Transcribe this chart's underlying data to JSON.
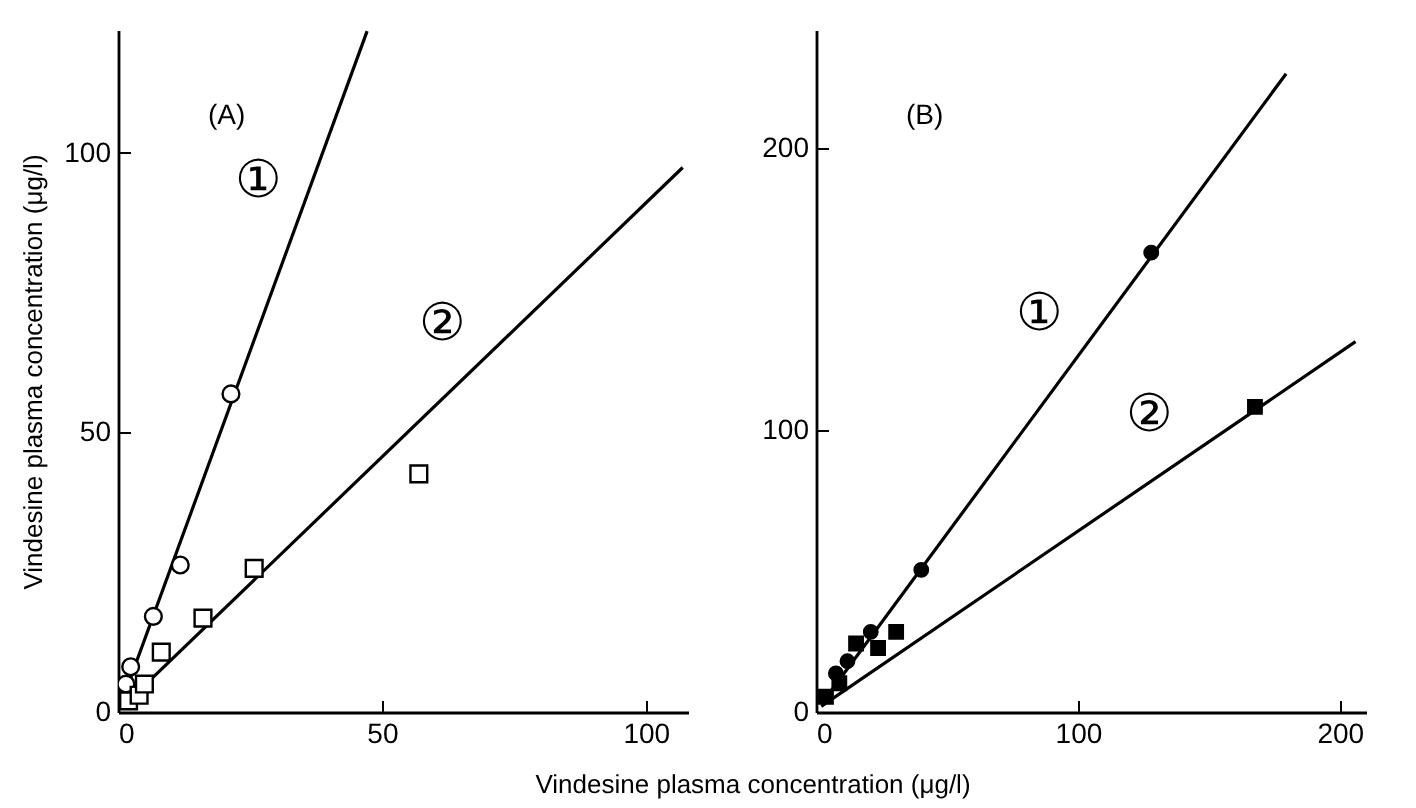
{
  "chart_data": [
    {
      "type": "scatter",
      "title": "(A)",
      "xlabel": "Vindesine plasma concentration (μg/l)",
      "ylabel": "Vindesine plasma concentration (μg/l)",
      "xlim": [
        0,
        108
      ],
      "ylim": [
        0,
        122
      ],
      "xticks": [
        0,
        50,
        100
      ],
      "yticks": [
        0,
        50,
        100
      ],
      "series": [
        {
          "marker": "circle",
          "color": "#ffffff",
          "x": [
            1.5,
            2.4,
            6.7,
            11.8,
            21.4
          ],
          "values": [
            5,
            8.1,
            17.1,
            26.3,
            56.9
          ]
        },
        {
          "marker": "square",
          "color": "#ffffff",
          "x": [
            2,
            4,
            5,
            8.2,
            16.1,
            25.8,
            57
          ],
          "values": [
            2,
            3,
            5,
            10.7,
            16.8,
            25.7,
            42.6
          ]
        },
        {
          "type": "line",
          "color": "#000000",
          "line_style": "solid",
          "x": [
            1.3,
            47.2
          ],
          "values": [
            3.3,
            121.8
          ]
        },
        {
          "type": "line",
          "color": "#000000",
          "line_style": "solid",
          "x": [
            2,
            107
          ],
          "values": [
            2,
            97.4
          ]
        }
      ],
      "annotations": [
        {
          "text": "①",
          "x": 34.1,
          "y": 87.9
        },
        {
          "text": "②",
          "x": 69,
          "y": 62.3
        }
      ]
    },
    {
      "type": "scatter",
      "title": "(B)",
      "xlim": [
        0,
        210
      ],
      "ylim": [
        0,
        242
      ],
      "xticks": [
        0,
        100,
        200
      ],
      "yticks": [
        0,
        100,
        200
      ],
      "series": [
        {
          "marker": "circle",
          "color": "#000000",
          "x": [
            7.6,
            12,
            20.9,
            40.2,
            128
          ],
          "values": [
            13.7,
            18,
            28.4,
            50.4,
            163
          ]
        },
        {
          "marker": "square",
          "color": "#000000",
          "x": [
            3.8,
            8.9,
            15.3,
            23.7,
            30.6,
            167.6
          ],
          "values": [
            5.4,
            10.2,
            24.3,
            22.7,
            28.4,
            108.3
          ]
        },
        {
          "type": "line",
          "color": "#000000",
          "line_style": "solid",
          "x": [
            3,
            179.5
          ],
          "values": [
            4,
            226.5
          ]
        },
        {
          "type": "line",
          "color": "#000000",
          "line_style": "solid",
          "x": [
            2,
            206
          ],
          "values": [
            2,
            131.4
          ]
        }
      ],
      "annotations": [
        {
          "text": "①",
          "x": 100.6,
          "y": 127
        },
        {
          "text": "②",
          "x": 142.6,
          "y": 91.2
        }
      ]
    }
  ]
}
